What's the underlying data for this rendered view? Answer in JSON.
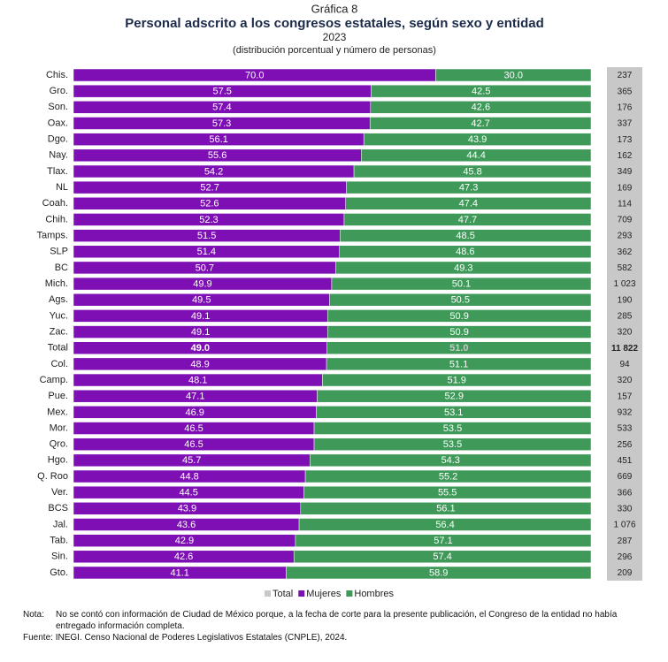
{
  "chart_data": {
    "type": "bar",
    "header": "Gráfica 8",
    "title": "Personal adscrito a los congresos estatales, según sexo y entidad",
    "year": "2023",
    "subtitle": "(distribución porcentual y número de personas)",
    "categories": [
      "Chis.",
      "Gro.",
      "Son.",
      "Oax.",
      "Dgo.",
      "Nay.",
      "Tlax.",
      "NL",
      "Coah.",
      "Chih.",
      "Tamps.",
      "SLP",
      "BC",
      "Mich.",
      "Ags.",
      "Yuc.",
      "Zac.",
      "Total",
      "Col.",
      "Camp.",
      "Pue.",
      "Mex.",
      "Mor.",
      "Qro.",
      "Hgo.",
      "Q. Roo",
      "Ver.",
      "BCS",
      "Jal.",
      "Tab.",
      "Sin.",
      "Gto."
    ],
    "series": [
      {
        "name": "Total",
        "color": "#c8c8c8",
        "values": [
          237,
          365,
          176,
          337,
          173,
          162,
          349,
          169,
          114,
          709,
          293,
          362,
          582,
          1023,
          190,
          285,
          320,
          11822,
          94,
          320,
          157,
          932,
          533,
          256,
          451,
          669,
          366,
          330,
          1076,
          287,
          296,
          209
        ],
        "value_labels": [
          "237",
          "365",
          "176",
          "337",
          "173",
          "162",
          "349",
          "169",
          "114",
          "709",
          "293",
          "362",
          "582",
          "1 023",
          "190",
          "285",
          "320",
          "11 822",
          "94",
          "320",
          "157",
          "932",
          "533",
          "256",
          "451",
          "669",
          "366",
          "330",
          "1 076",
          "287",
          "296",
          "209"
        ]
      },
      {
        "name": "Mujeres",
        "color": "#7e0fb5",
        "values": [
          70.0,
          57.5,
          57.4,
          57.3,
          56.1,
          55.6,
          54.2,
          52.7,
          52.6,
          52.3,
          51.5,
          51.4,
          50.7,
          49.9,
          49.5,
          49.1,
          49.1,
          49.0,
          48.9,
          48.1,
          47.1,
          46.9,
          46.5,
          46.5,
          45.7,
          44.8,
          44.5,
          43.9,
          43.6,
          42.9,
          42.6,
          41.1
        ],
        "value_labels": [
          "70.0",
          "57.5",
          "57.4",
          "57.3",
          "56.1",
          "55.6",
          "54.2",
          "52.7",
          "52.6",
          "52.3",
          "51.5",
          "51.4",
          "50.7",
          "49.9",
          "49.5",
          "49.1",
          "49.1",
          "49.0",
          "48.9",
          "48.1",
          "47.1",
          "46.9",
          "46.5",
          "46.5",
          "45.7",
          "44.8",
          "44.5",
          "43.9",
          "43.6",
          "42.9",
          "42.6",
          "41.1"
        ]
      },
      {
        "name": "Hombres",
        "color": "#3f9a5a",
        "values": [
          30.0,
          42.5,
          42.6,
          42.7,
          43.9,
          44.4,
          45.8,
          47.3,
          47.4,
          47.7,
          48.5,
          48.6,
          49.3,
          50.1,
          50.5,
          50.9,
          50.9,
          51.0,
          51.1,
          51.9,
          52.9,
          53.1,
          53.5,
          53.5,
          54.3,
          55.2,
          55.5,
          56.1,
          56.4,
          57.1,
          57.4,
          58.9
        ],
        "value_labels": [
          "30.0",
          "42.5",
          "42.6",
          "42.7",
          "43.9",
          "44.4",
          "45.8",
          "47.3",
          "47.4",
          "47.7",
          "48.5",
          "48.6",
          "49.3",
          "50.1",
          "50.5",
          "50.9",
          "50.9",
          "51.0",
          "51.1",
          "51.9",
          "52.9",
          "53.1",
          "53.5",
          "53.5",
          "54.3",
          "55.2",
          "55.5",
          "56.1",
          "56.4",
          "57.1",
          "57.4",
          "58.9"
        ]
      }
    ],
    "xlim": [
      0,
      100
    ],
    "note_label": "Nota:",
    "note": "No se contó con información de Ciudad de México porque, a la fecha de corte para la presente publicación, el Congreso de la entidad no había entregado información completa.",
    "source": "Fuente: INEGI. Censo Nacional de Poderes Legislativos Estatales (CNPLE), 2024."
  }
}
